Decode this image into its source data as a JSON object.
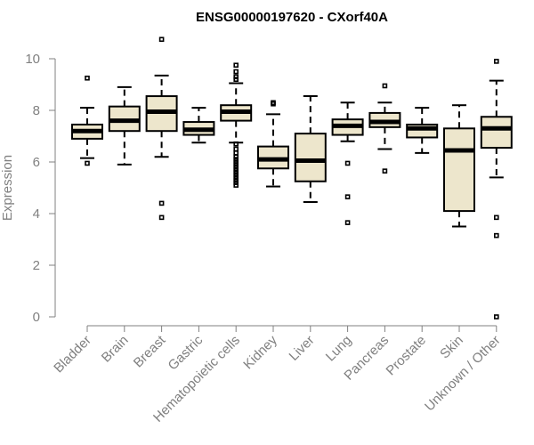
{
  "chart_data": {
    "type": "boxplot",
    "title": "ENSG00000197620 - CXorf40A",
    "xlabel": "",
    "ylabel": "Expression",
    "ylim": [
      0,
      10
    ],
    "yticks": [
      0,
      2,
      4,
      6,
      8,
      10
    ],
    "grid": false,
    "colors": {
      "box_fill": "#ede6cc",
      "stroke": "#000000",
      "axis": "#808080"
    },
    "categories": [
      "Bladder",
      "Brain",
      "Breast",
      "Gastric",
      "Hematopoietic cells",
      "Kidney",
      "Liver",
      "Lung",
      "Pancreas",
      "Prostate",
      "Skin",
      "Unknown / Other"
    ],
    "boxes": [
      {
        "name": "Bladder",
        "whisker_low": 6.15,
        "q1": 6.9,
        "median": 7.2,
        "q3": 7.45,
        "whisker_high": 8.1,
        "outliers": [
          9.25,
          5.95
        ]
      },
      {
        "name": "Brain",
        "whisker_low": 5.9,
        "q1": 7.2,
        "median": 7.6,
        "q3": 8.15,
        "whisker_high": 8.9,
        "outliers": []
      },
      {
        "name": "Breast",
        "whisker_low": 6.2,
        "q1": 7.2,
        "median": 7.95,
        "q3": 8.55,
        "whisker_high": 9.35,
        "outliers": [
          10.75,
          4.4,
          3.85
        ]
      },
      {
        "name": "Gastric",
        "whisker_low": 6.75,
        "q1": 7.05,
        "median": 7.25,
        "q3": 7.55,
        "whisker_high": 8.1,
        "outliers": []
      },
      {
        "name": "Hematopoietic cells",
        "whisker_low": 6.75,
        "q1": 7.6,
        "median": 7.95,
        "q3": 8.2,
        "whisker_high": 9.05,
        "outliers": [
          9.75,
          9.5,
          9.3,
          9.2,
          6.7,
          6.5,
          6.35,
          6.2,
          6.1,
          6.0,
          5.9,
          5.8,
          5.7,
          5.6,
          5.5,
          5.4,
          5.3,
          5.2,
          5.1
        ]
      },
      {
        "name": "Kidney",
        "whisker_low": 5.05,
        "q1": 5.75,
        "median": 6.1,
        "q3": 6.6,
        "whisker_high": 7.85,
        "outliers": [
          8.3,
          8.25
        ]
      },
      {
        "name": "Liver",
        "whisker_low": 4.45,
        "q1": 5.25,
        "median": 6.05,
        "q3": 7.1,
        "whisker_high": 8.55,
        "outliers": []
      },
      {
        "name": "Lung",
        "whisker_low": 6.8,
        "q1": 7.05,
        "median": 7.4,
        "q3": 7.65,
        "whisker_high": 8.3,
        "outliers": [
          5.95,
          4.65,
          3.65
        ]
      },
      {
        "name": "Pancreas",
        "whisker_low": 6.5,
        "q1": 7.35,
        "median": 7.55,
        "q3": 7.9,
        "whisker_high": 8.3,
        "outliers": [
          8.95,
          5.65
        ]
      },
      {
        "name": "Prostate",
        "whisker_low": 6.35,
        "q1": 6.95,
        "median": 7.3,
        "q3": 7.45,
        "whisker_high": 8.1,
        "outliers": []
      },
      {
        "name": "Skin",
        "whisker_low": 3.5,
        "q1": 4.1,
        "median": 6.45,
        "q3": 7.3,
        "whisker_high": 8.2,
        "outliers": []
      },
      {
        "name": "Unknown / Other",
        "whisker_low": 5.4,
        "q1": 6.55,
        "median": 7.3,
        "q3": 7.75,
        "whisker_high": 9.15,
        "outliers": [
          9.9,
          3.85,
          3.15,
          0.0
        ]
      }
    ]
  }
}
